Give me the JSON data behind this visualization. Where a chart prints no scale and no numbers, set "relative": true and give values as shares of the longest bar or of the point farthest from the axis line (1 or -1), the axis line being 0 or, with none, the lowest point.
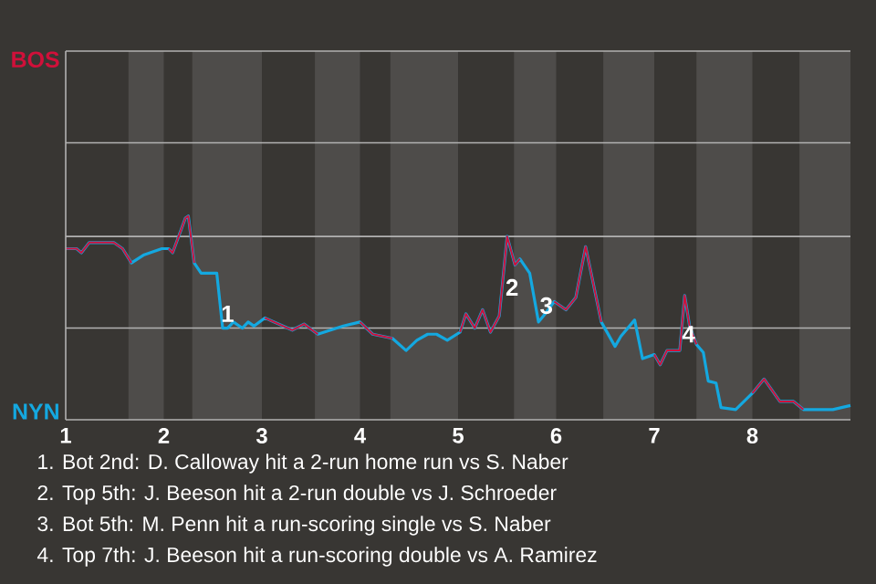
{
  "chart_data": {
    "type": "line",
    "relative": true,
    "x": [
      1.0,
      1.11,
      1.16,
      1.24,
      1.49,
      1.58,
      1.67,
      1.8,
      1.98,
      2.05,
      2.09,
      2.22,
      2.25,
      2.31,
      2.38,
      2.54,
      2.6,
      2.65,
      2.71,
      2.8,
      2.86,
      2.92,
      3.03,
      3.31,
      3.43,
      3.57,
      3.83,
      4.0,
      4.13,
      4.33,
      4.47,
      4.58,
      4.69,
      4.78,
      4.89,
      5.02,
      5.08,
      5.17,
      5.25,
      5.33,
      5.42,
      5.5,
      5.58,
      5.63,
      5.73,
      5.82,
      5.87,
      5.98,
      6.1,
      6.2,
      6.3,
      6.46,
      6.6,
      6.66,
      6.8,
      6.88,
      7.0,
      7.06,
      7.13,
      7.26,
      7.31,
      7.36,
      7.43,
      7.5,
      7.55,
      7.63,
      7.68,
      7.83,
      8.0,
      8.12,
      8.28,
      8.42,
      8.52,
      8.82,
      9.0
    ],
    "series": [
      {
        "color": "#14a8e0",
        "values": [
          0.84,
          0.84,
          0.82,
          0.87,
          0.87,
          0.84,
          0.77,
          0.81,
          0.84,
          0.84,
          0.82,
          0.99,
          1,
          0.77,
          0.72,
          0.72,
          0.45,
          0.45,
          0.48,
          0.45,
          0.48,
          0.46,
          0.5,
          0.44,
          0.47,
          0.42,
          0.46,
          0.48,
          0.42,
          0.4,
          0.34,
          0.39,
          0.42,
          0.42,
          0.39,
          0.43,
          0.52,
          0.45,
          0.54,
          0.43,
          0.51,
          0.9,
          0.76,
          0.79,
          0.72,
          0.48,
          0.51,
          0.58,
          0.54,
          0.6,
          0.85,
          0.48,
          0.36,
          0.41,
          0.49,
          0.3,
          0.32,
          0.27,
          0.34,
          0.34,
          0.61,
          0.46,
          0.37,
          0.33,
          0.19,
          0.18,
          0.06,
          0.05,
          0.13,
          0.2,
          0.09,
          0.09,
          0.05,
          0.05,
          0.07
        ]
      },
      {
        "color": "#d0103a",
        "values": [
          0.84,
          0.84,
          0.82,
          0.87,
          0.87,
          0.84,
          0.77,
          null,
          null,
          0.84,
          0.82,
          0.99,
          1,
          0.77,
          null,
          null,
          null,
          null,
          null,
          null,
          null,
          null,
          0.5,
          0.44,
          0.47,
          0.42,
          null,
          0.48,
          0.42,
          0.4,
          null,
          null,
          null,
          null,
          null,
          0.43,
          0.52,
          0.45,
          0.54,
          0.43,
          0.51,
          0.9,
          0.76,
          0.79,
          null,
          null,
          null,
          0.58,
          0.54,
          0.6,
          0.85,
          0.48,
          null,
          null,
          null,
          null,
          0.32,
          0.27,
          0.34,
          0.34,
          0.61,
          0.46,
          0.37,
          null,
          null,
          null,
          null,
          null,
          0.13,
          0.2,
          0.09,
          0.09,
          0.05,
          null,
          null
        ]
      }
    ],
    "xlim": [
      1,
      9
    ],
    "xticks": [
      1,
      2,
      3,
      4,
      5,
      6,
      7,
      8
    ],
    "ref_lines": [
      {
        "axis": "y",
        "value": 0.45,
        "color": "#b2b2b2"
      },
      {
        "axis": "y",
        "value": 0.9,
        "color": "#b2b2b2"
      },
      {
        "axis": "y",
        "value": 1.36,
        "color": "#b2b2b2"
      },
      {
        "axis": "y",
        "value": 1.81,
        "color": "#b2b2b2"
      }
    ],
    "bands": [
      {
        "axis": "x",
        "from": 1.64,
        "to": 2.0,
        "color": "#4e4c4a"
      },
      {
        "axis": "x",
        "from": 2.29,
        "to": 3.0,
        "color": "#4e4c4a"
      },
      {
        "axis": "x",
        "from": 3.54,
        "to": 4.0,
        "color": "#4e4c4a"
      },
      {
        "axis": "x",
        "from": 4.31,
        "to": 5.0,
        "color": "#4e4c4a"
      },
      {
        "axis": "x",
        "from": 5.57,
        "to": 6.0,
        "color": "#4e4c4a"
      },
      {
        "axis": "x",
        "from": 6.48,
        "to": 7.0,
        "color": "#4e4c4a"
      },
      {
        "axis": "x",
        "from": 7.43,
        "to": 8.0,
        "color": "#4e4c4a"
      },
      {
        "axis": "x",
        "from": 8.48,
        "to": 9.0,
        "color": "#4e4c4a"
      }
    ],
    "annotations": [
      "BOS",
      "NYN",
      {
        "text": "1",
        "x": 2.65,
        "y": 0.52
      },
      {
        "text": "2",
        "x": 5.55,
        "y": 0.65
      },
      {
        "text": "3",
        "x": 5.9,
        "y": 0.56
      },
      {
        "text": "4",
        "x": 7.35,
        "y": 0.42
      },
      "1. Bot 2nd: D. Calloway hit a 2-run home run vs S. Naber",
      "2. Top 5th: J. Beeson hit a 2-run double vs J. Schroeder",
      "3. Bot 5th: M. Penn hit a run-scoring single vs S. Naber",
      "4. Top 7th: J. Beeson hit a run-scoring double vs A. Ramirez"
    ]
  }
}
